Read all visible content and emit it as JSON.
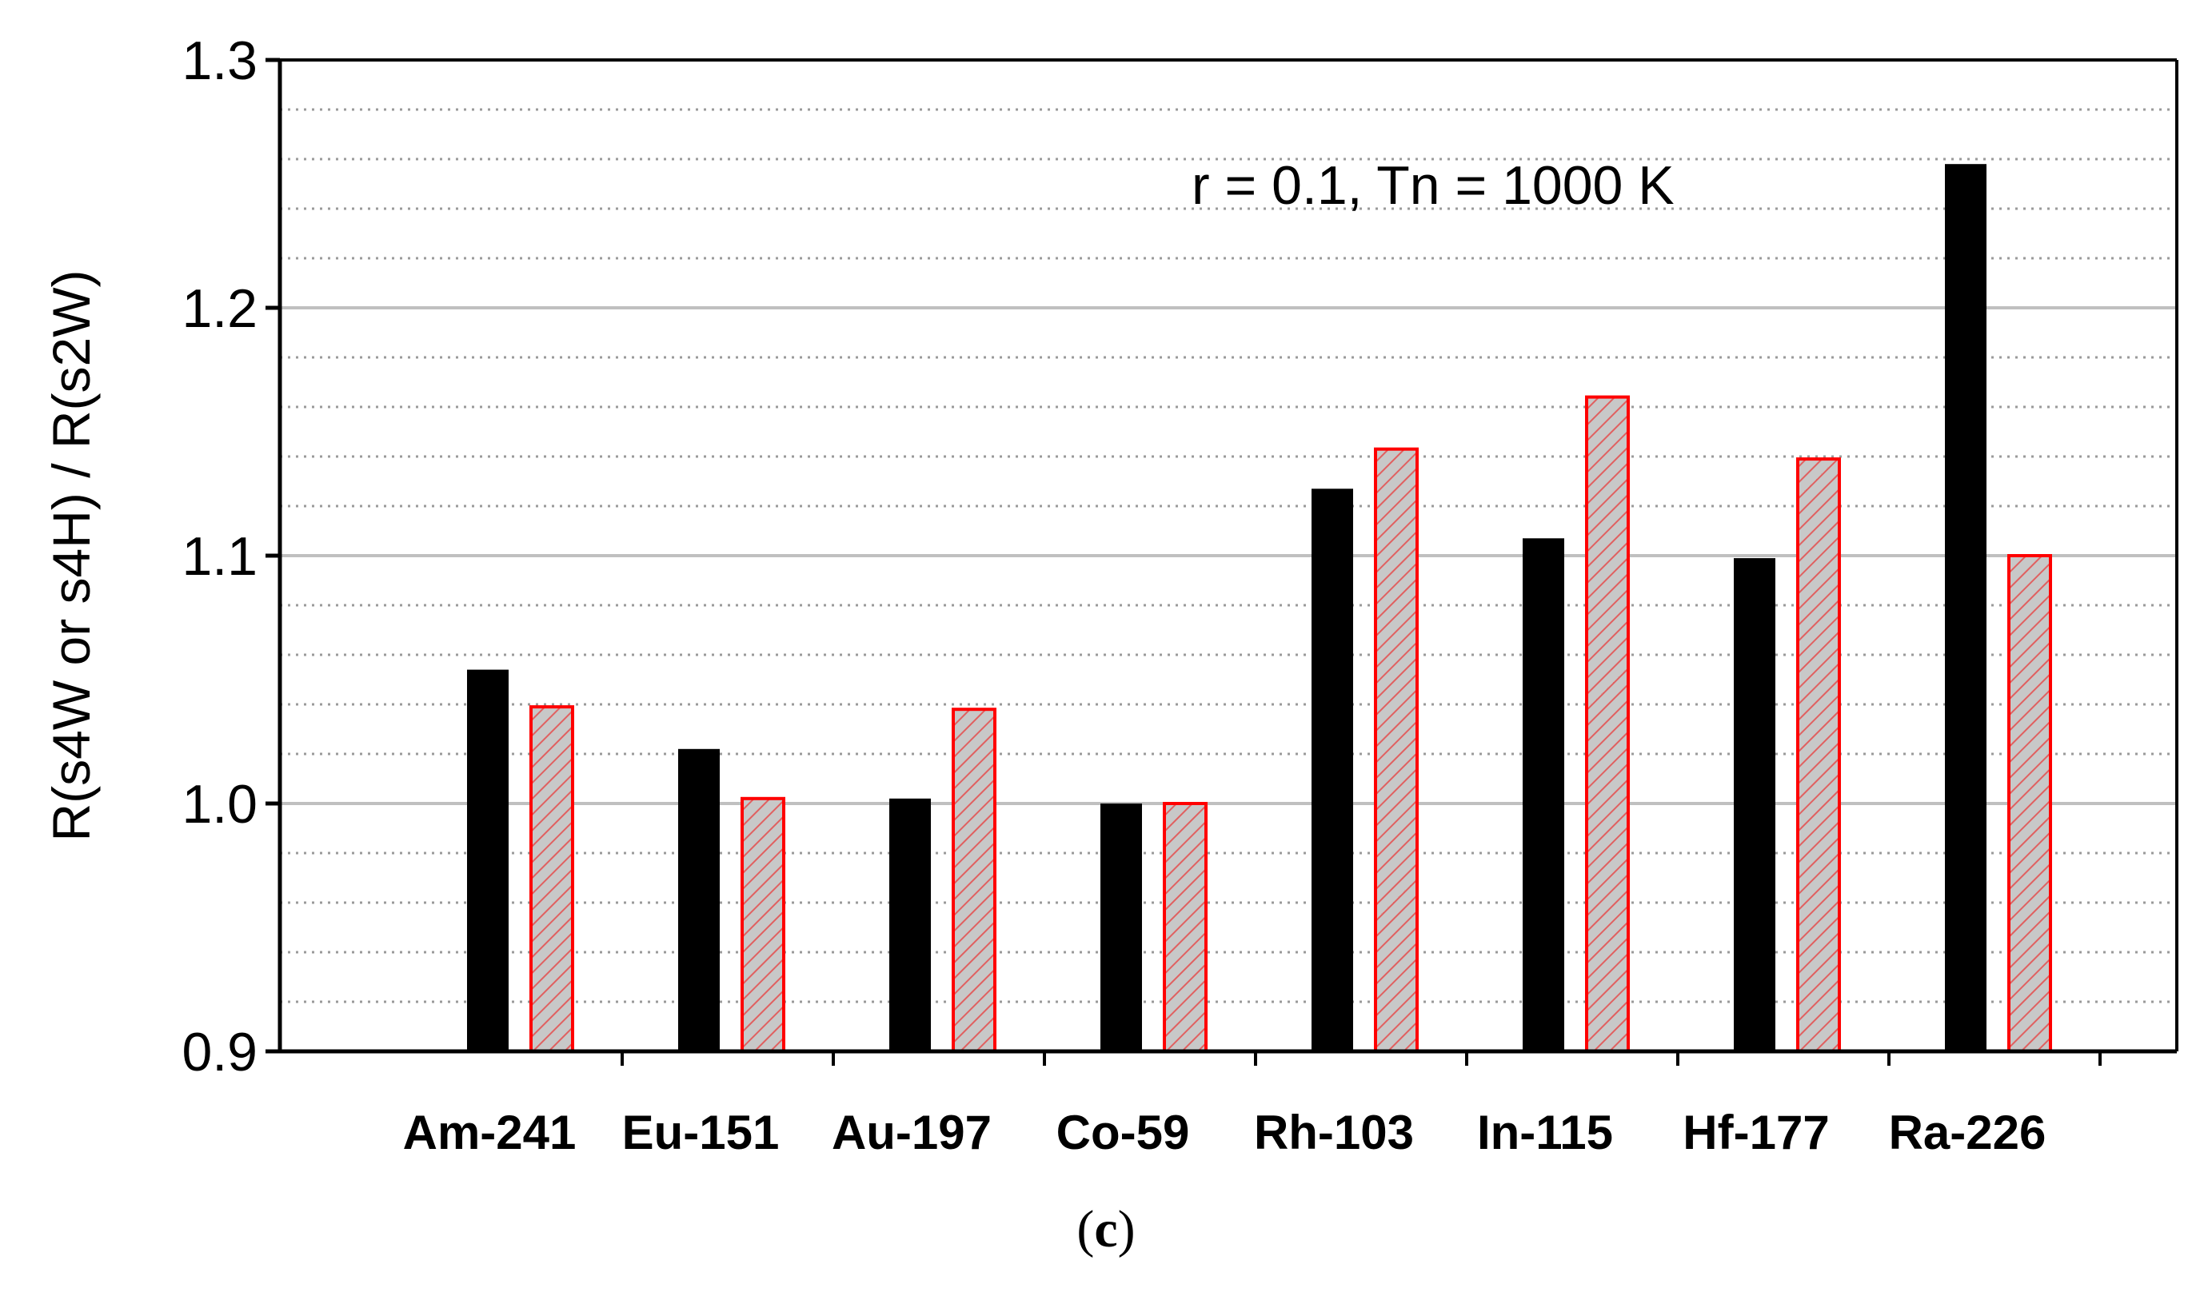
{
  "panel_label_open": "(",
  "panel_label_letter": "c",
  "panel_label_close": ")",
  "colors": {
    "series_1": "#000000",
    "series_2_fill": "#c8c8c8",
    "series_2_edge": "#ff0000",
    "major_grid": "#c0c0c0",
    "minor_grid": "#9a9a9a"
  },
  "chart_data": {
    "type": "bar",
    "title": "",
    "annotation": "r = 0.1, Tn = 1000 K",
    "xlabel": "",
    "ylabel": "R(s4W or s4H) / R(s2W)",
    "ylim": [
      0.9,
      1.3
    ],
    "yticks": [
      0.9,
      1.0,
      1.1,
      1.2,
      1.3
    ],
    "ytick_labels": [
      "0.9",
      "1.0",
      "1.1",
      "1.2",
      "1.3"
    ],
    "minor_grid_step": 0.02,
    "grid": true,
    "legend": "none",
    "categories": [
      "Am-241",
      "Eu-151",
      "Au-197",
      "Co-59",
      "Rh-103",
      "In-115",
      "Hf-177",
      "Ra-226"
    ],
    "series": [
      {
        "style": "solid-black",
        "values": [
          1.054,
          1.022,
          1.002,
          1.0,
          1.127,
          1.107,
          1.099,
          1.258
        ]
      },
      {
        "style": "red-hatched",
        "values": [
          1.039,
          1.002,
          1.038,
          1.0,
          1.143,
          1.164,
          1.139,
          1.1
        ]
      }
    ]
  }
}
